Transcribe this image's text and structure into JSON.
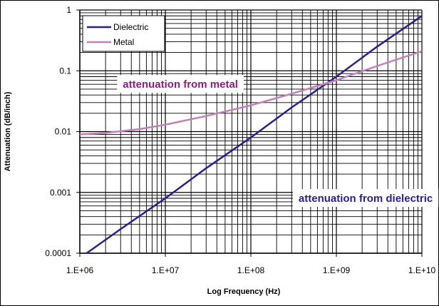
{
  "chart_data": {
    "type": "line",
    "title": "",
    "xlabel": "Log Frequency (Hz)",
    "ylabel": "Attenuation (dB/inch)",
    "xscale": "log",
    "yscale": "log",
    "xlim": [
      1000000,
      10000000000
    ],
    "ylim": [
      0.0001,
      1
    ],
    "grid": true,
    "legend": "top-left",
    "x_tick_labels": [
      "1.E+06",
      "1.E+07",
      "1.E+08",
      "1.E+09",
      "1.E+10"
    ],
    "y_tick_labels": [
      "0.0001",
      "0.001",
      "0.01",
      "0.1",
      "1"
    ],
    "series": [
      {
        "name": "Dielectric",
        "color": "#2e1e8c",
        "x": [
          1000000,
          1200000,
          3000000,
          10000000,
          30000000,
          100000000,
          300000000,
          1000000000,
          3000000000,
          10000000000
        ],
        "y": [
          8e-05,
          0.0001,
          0.00025,
          0.0008,
          0.0025,
          0.008,
          0.025,
          0.08,
          0.25,
          0.8
        ]
      },
      {
        "name": "Metal",
        "color": "#c080b8",
        "x": [
          1000000,
          2000000,
          5000000,
          10000000,
          30000000,
          100000000,
          300000000,
          1000000000,
          3000000000,
          10000000000
        ],
        "y": [
          0.009,
          0.0095,
          0.011,
          0.013,
          0.018,
          0.027,
          0.042,
          0.07,
          0.12,
          0.21
        ]
      }
    ],
    "annotations": [
      {
        "text": "attenuation from metal",
        "x": 15000000,
        "y": 0.06,
        "color": "#8b1e7e"
      },
      {
        "text": "attenuation from dielectric",
        "x": 2200000000,
        "y": 0.0008,
        "color": "#2e1e8c"
      }
    ]
  }
}
